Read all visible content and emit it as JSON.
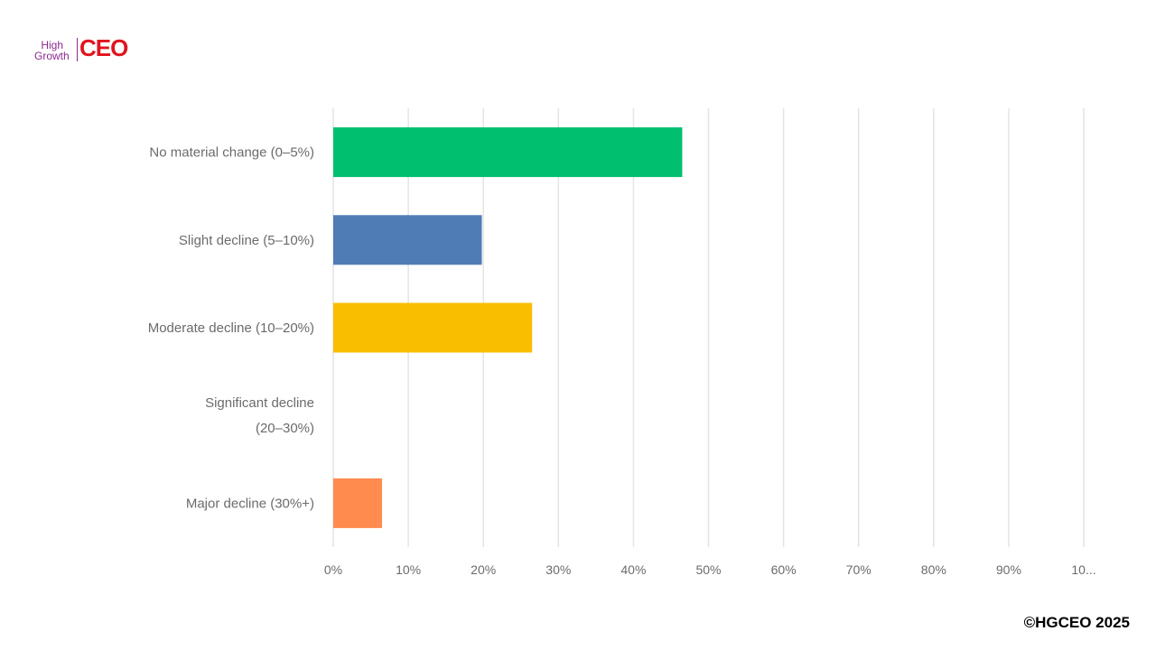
{
  "logo": {
    "line1": "High",
    "line2": "Growth",
    "mark": "CEO"
  },
  "copyright": "©HGCEO 2025",
  "chart_data": {
    "type": "bar",
    "orientation": "horizontal",
    "categories": [
      [
        "No material change (0–5%)"
      ],
      [
        "Slight decline (5–10%)"
      ],
      [
        "Moderate decline (10–20%)"
      ],
      [
        "Significant decline",
        "(20–30%)"
      ],
      [
        "Major decline (30%+)"
      ]
    ],
    "values": [
      46.5,
      19.8,
      26.5,
      0,
      6.5
    ],
    "colors": [
      "#00bf6f",
      "#507cb6",
      "#f9be00",
      "#6bc8cd",
      "#ff8b4f"
    ],
    "xlim": [
      0,
      100
    ],
    "ticks": [
      "0%",
      "10%",
      "20%",
      "30%",
      "40%",
      "50%",
      "60%",
      "70%",
      "80%",
      "90%",
      "10..."
    ],
    "grid": true,
    "legend": "none"
  }
}
